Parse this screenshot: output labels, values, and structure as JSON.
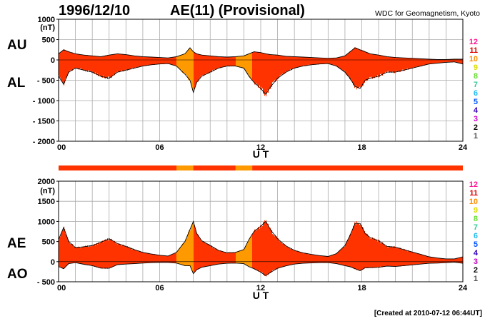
{
  "header": {
    "date": "1996/12/10",
    "index_title": "AE(11) (Provisional)",
    "source": "WDC for Geomagnetism, Kyoto"
  },
  "footer": {
    "created": "[Created at 2010-07-12 06:44UT]"
  },
  "colors": {
    "fill_red": "#ff3300",
    "fill_orange": "#ff9900",
    "grid": "#aaaaaa",
    "level_colors": [
      "#ff1493",
      "#dd0000",
      "#ff8c00",
      "#dddd00",
      "#66dd33",
      "#33cc99",
      "#22bbee",
      "#0055ff",
      "#3300bb",
      "#cc00cc",
      "#000000",
      "#555555",
      "#bbbbbb"
    ]
  },
  "level_labels": [
    "12",
    "11",
    "10",
    "9",
    "8",
    "7",
    "6",
    "5",
    "4",
    "3",
    "2",
    "1"
  ],
  "chart_data": [
    {
      "type": "area",
      "panel": "AU/AL",
      "series_labels": [
        "AU",
        "AL"
      ],
      "unit": "(nT)",
      "xlabel": "U T",
      "x_ticks": [
        "00",
        "06",
        "12",
        "18",
        "24"
      ],
      "xlim": [
        0,
        24
      ],
      "ylim": [
        -2000,
        1000
      ],
      "y_ticks": [
        1000,
        500,
        0,
        -500,
        -1000,
        -1500,
        -2000
      ],
      "y_tick_labels": [
        "1000",
        "500",
        "0",
        "- 500",
        "- 1000",
        "- 1500",
        "- 2000"
      ],
      "grid": true,
      "orange_intervals": [
        [
          7.0,
          8.0
        ],
        [
          10.5,
          11.5
        ]
      ],
      "x": [
        0,
        0.3,
        0.6,
        1,
        1.5,
        2,
        2.5,
        3,
        3.5,
        4,
        4.5,
        5,
        5.5,
        6,
        6.5,
        7,
        7.5,
        7.8,
        8,
        8.2,
        8.5,
        9,
        9.5,
        10,
        10.5,
        11,
        11.3,
        11.6,
        12,
        12.3,
        12.6,
        13,
        13.5,
        14,
        14.5,
        15,
        15.5,
        16,
        16.5,
        17,
        17.3,
        17.6,
        17.9,
        18.2,
        18.5,
        19,
        19.5,
        20,
        20.5,
        21,
        21.5,
        22,
        22.5,
        23,
        23.5,
        24
      ],
      "au": [
        150,
        250,
        200,
        150,
        120,
        100,
        80,
        120,
        150,
        130,
        100,
        80,
        70,
        60,
        50,
        80,
        150,
        300,
        200,
        150,
        120,
        100,
        80,
        70,
        80,
        100,
        150,
        200,
        180,
        150,
        130,
        120,
        90,
        80,
        70,
        60,
        50,
        40,
        50,
        100,
        200,
        300,
        250,
        200,
        150,
        120,
        80,
        60,
        50,
        40,
        30,
        20,
        10,
        10,
        20,
        20
      ],
      "al": [
        -400,
        -600,
        -300,
        -200,
        -250,
        -300,
        -400,
        -450,
        -300,
        -250,
        -200,
        -150,
        -120,
        -100,
        -90,
        -150,
        -350,
        -500,
        -800,
        -550,
        -400,
        -300,
        -200,
        -150,
        -150,
        -200,
        -400,
        -550,
        -700,
        -850,
        -650,
        -450,
        -300,
        -200,
        -150,
        -120,
        -100,
        -90,
        -150,
        -300,
        -450,
        -650,
        -700,
        -500,
        -450,
        -400,
        -300,
        -300,
        -250,
        -200,
        -150,
        -100,
        -80,
        -60,
        -50,
        -100
      ]
    },
    {
      "type": "area",
      "panel": "AE/AO",
      "series_labels": [
        "AE",
        "AO"
      ],
      "unit": "(nT)",
      "xlabel": "U T",
      "x_ticks": [
        "00",
        "06",
        "12",
        "18",
        "24"
      ],
      "xlim": [
        0,
        24
      ],
      "ylim": [
        -500,
        2000
      ],
      "y_ticks": [
        2000,
        1500,
        1000,
        500,
        0,
        -500
      ],
      "y_tick_labels": [
        "2000",
        "1500",
        "1000",
        "500",
        "0",
        "- 500"
      ],
      "grid": true,
      "orange_intervals": [
        [
          7.0,
          8.0
        ],
        [
          10.5,
          11.5
        ]
      ],
      "x": [
        0,
        0.3,
        0.6,
        1,
        1.5,
        2,
        2.5,
        3,
        3.5,
        4,
        4.5,
        5,
        5.5,
        6,
        6.5,
        7,
        7.5,
        7.8,
        8,
        8.2,
        8.5,
        9,
        9.5,
        10,
        10.5,
        11,
        11.3,
        11.6,
        12,
        12.3,
        12.6,
        13,
        13.5,
        14,
        14.5,
        15,
        15.5,
        16,
        16.5,
        17,
        17.3,
        17.6,
        17.9,
        18.2,
        18.5,
        19,
        19.5,
        20,
        20.5,
        21,
        21.5,
        22,
        22.5,
        23,
        23.5,
        24
      ],
      "ae": [
        550,
        850,
        500,
        350,
        370,
        400,
        480,
        570,
        450,
        380,
        300,
        230,
        190,
        160,
        140,
        230,
        500,
        800,
        1000,
        700,
        520,
        400,
        280,
        220,
        230,
        300,
        550,
        750,
        880,
        1000,
        780,
        570,
        390,
        280,
        220,
        180,
        150,
        130,
        200,
        400,
        650,
        950,
        950,
        700,
        600,
        520,
        380,
        360,
        300,
        240,
        180,
        120,
        90,
        70,
        70,
        120
      ],
      "ao": [
        -120,
        -175,
        -50,
        -25,
        -65,
        -100,
        -160,
        -165,
        -75,
        -60,
        -50,
        -35,
        -25,
        -20,
        -20,
        -35,
        -100,
        -100,
        -300,
        -200,
        -140,
        -100,
        -60,
        -40,
        -35,
        -50,
        -125,
        -175,
        -260,
        -350,
        -260,
        -165,
        -105,
        -60,
        -40,
        -30,
        -25,
        -25,
        -50,
        -100,
        -125,
        -175,
        -225,
        -150,
        -150,
        -140,
        -110,
        -120,
        -100,
        -80,
        -60,
        -40,
        -35,
        -25,
        -15,
        -40
      ]
    }
  ]
}
